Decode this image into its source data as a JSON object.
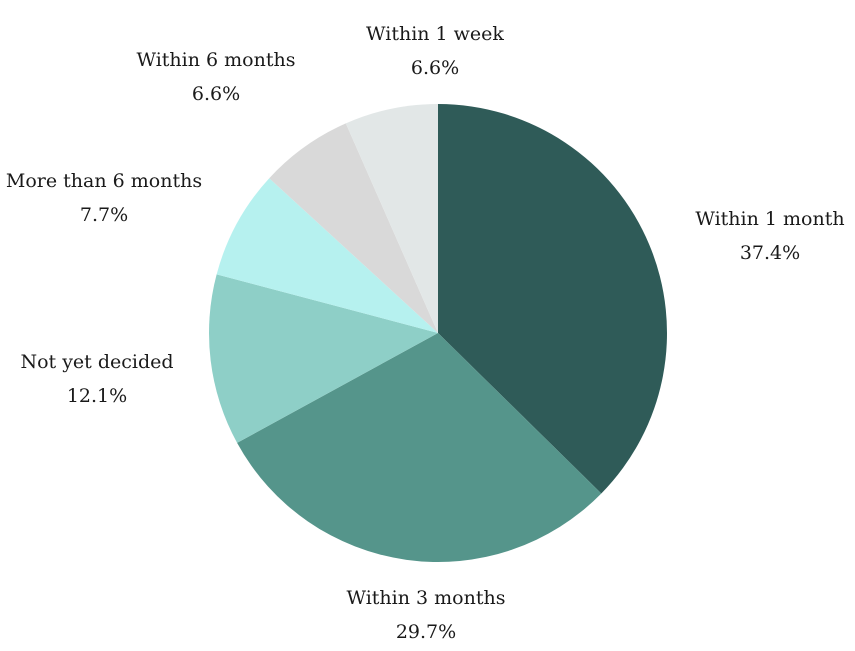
{
  "chart_data": {
    "type": "pie",
    "title": "",
    "start_angle_deg": 0,
    "direction": "clockwise",
    "slices": [
      {
        "label": "Within 1 month",
        "value": 37.4,
        "value_label": "37.4%",
        "color": "#2f5b58"
      },
      {
        "label": "Within 3 months",
        "value": 29.7,
        "value_label": "29.7%",
        "color": "#55958b"
      },
      {
        "label": "Not yet decided",
        "value": 12.1,
        "value_label": "12.1%",
        "color": "#8ecfc7"
      },
      {
        "label": "More than 6 months",
        "value": 7.7,
        "value_label": "7.7%",
        "color": "#b6f1ef"
      },
      {
        "label": "Within 6 months",
        "value": 6.6,
        "value_label": "6.6%",
        "color": "#d9d9d9"
      },
      {
        "label": "Within 1 week",
        "value": 6.6,
        "value_label": "6.6%",
        "color": "#e2e7e7"
      }
    ]
  }
}
